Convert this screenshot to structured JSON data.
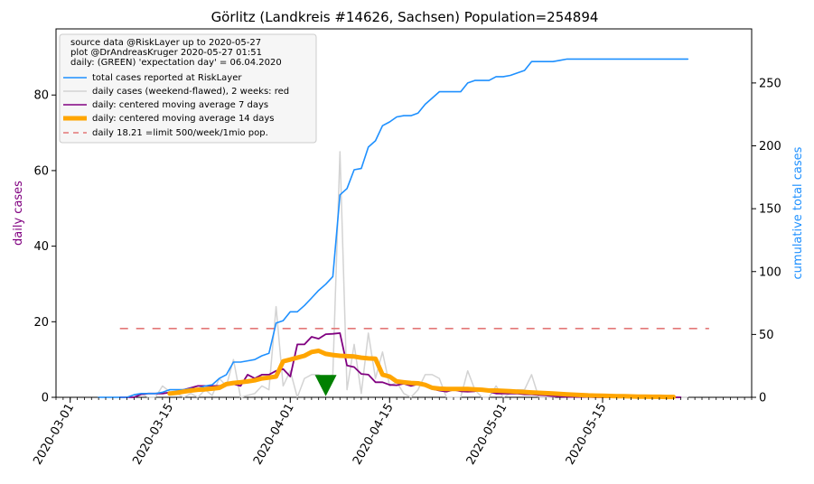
{
  "chart_data": {
    "type": "line",
    "title": "Görlitz (Landkreis #14626, Sachsen) Population=254894",
    "ylabel_left": "daily cases",
    "ylabel_right": "cumulative total cases",
    "ylim_left": [
      0,
      97.5
    ],
    "ylim_right": [
      0,
      293
    ],
    "yticks_left": [
      0,
      20,
      40,
      60,
      80
    ],
    "yticks_right": [
      0,
      50,
      100,
      150,
      200,
      250
    ],
    "xlim": [
      "2020-02-28",
      "2020-06-05"
    ],
    "xtick_labels": [
      "2020-03-01",
      "2020-03-15",
      "2020-04-01",
      "2020-04-15",
      "2020-05-01",
      "2020-05-15"
    ],
    "grid": false,
    "legend_position": "top-left",
    "legend_header": [
      "source data @RiskLayer up to 2020-05-27",
      "plot @DrAndreasKruger 2020-05-27 01:51",
      "daily: (GREEN) 'expectation day' = 06.04.2020"
    ],
    "expectation_day": "2020-04-06",
    "limit_value": 18.21,
    "colors": {
      "total": "#1e90ff",
      "daily": "#d3d3d3",
      "ma7": "#800080",
      "ma14": "#ffa500",
      "limit": "#e37777",
      "marker": "#008000",
      "left_axis_label": "#800080",
      "right_axis_label": "#1e90ff"
    },
    "series": [
      {
        "name": "total cases reported at RiskLayer",
        "axis": "right",
        "color": "#1e90ff",
        "start": "2020-03-05",
        "values": [
          0,
          0,
          0,
          0,
          0,
          2,
          3,
          3,
          3,
          4,
          6,
          6,
          6,
          7,
          7,
          9,
          10,
          15,
          18,
          28,
          28,
          29,
          30,
          33,
          35,
          59,
          61,
          68,
          68,
          73,
          79,
          85,
          90,
          96,
          161,
          166,
          181,
          182,
          199,
          204,
          216,
          219,
          223,
          224,
          224,
          226,
          233,
          238,
          243,
          243,
          243,
          243,
          250,
          252,
          252,
          252,
          255,
          255,
          256,
          258,
          260,
          267,
          267,
          267,
          267,
          268,
          269,
          269,
          269,
          269,
          269,
          269,
          269,
          269,
          269,
          269,
          269,
          269,
          269,
          269,
          269,
          269,
          269,
          269
        ]
      },
      {
        "name": "daily cases (weekend-flawed), 2 weeks: red",
        "axis": "left",
        "color": "#d3d3d3",
        "start": "2020-03-05",
        "values": [
          0,
          0,
          0,
          0,
          0,
          0.7,
          1,
          0,
          0,
          3,
          1.5,
          1,
          0,
          1,
          0,
          2,
          0.5,
          5,
          3,
          10,
          0,
          0.5,
          1,
          3,
          2,
          24,
          3,
          7,
          0,
          5,
          6,
          6,
          5,
          6,
          65,
          2,
          14,
          1,
          17,
          5,
          12,
          3,
          4,
          1,
          0,
          2,
          6,
          6,
          5,
          0,
          0,
          0,
          7,
          2,
          0,
          0,
          3,
          0,
          1,
          2,
          2,
          6,
          0,
          0,
          0,
          0.5,
          1,
          0,
          0,
          0,
          0,
          0,
          0,
          0,
          0,
          0,
          0,
          0,
          0,
          0,
          0,
          0,
          0,
          0
        ]
      },
      {
        "name": "daily: centered moving average 7 days",
        "axis": "left",
        "color": "#800080",
        "start": "2020-03-08",
        "values": [
          0,
          0,
          0,
          0.8,
          1,
          1,
          1,
          1.3,
          1.5,
          2,
          2.5,
          3,
          3,
          3,
          3,
          3.5,
          3.5,
          3,
          6,
          5,
          6,
          6,
          7,
          7.5,
          5.5,
          14,
          14,
          16,
          15.5,
          16.7,
          16.8,
          17,
          8.4,
          8,
          6.2,
          6,
          4,
          4,
          3.3,
          3.2,
          3.6,
          3,
          3.5,
          3,
          2.2,
          1.8,
          1.5,
          2,
          1.6,
          1.5,
          1.6,
          2,
          1.5,
          1,
          1,
          1,
          1,
          0.8,
          0.8,
          0.6,
          0.5,
          0.3,
          0.2,
          0.1,
          0.1,
          0.1,
          0.1,
          0,
          0,
          0,
          0,
          0,
          0,
          0,
          0,
          0,
          0,
          0,
          0,
          0
        ]
      },
      {
        "name": "daily: centered moving average 14 days",
        "axis": "left",
        "color": "#ffa500",
        "start": "2020-03-15",
        "values": [
          1,
          1.2,
          1.5,
          1.8,
          2,
          2.1,
          2.3,
          2.5,
          3.5,
          3.8,
          4,
          4.2,
          4.5,
          5,
          5.2,
          5.5,
          9.5,
          10,
          10.5,
          11,
          12,
          12.3,
          11.5,
          11.2,
          11,
          10.9,
          10.8,
          10.5,
          10.3,
          10.2,
          6,
          5.5,
          4.2,
          4,
          3.8,
          3.7,
          3.3,
          2.5,
          2.3,
          2.2,
          2.2,
          2.2,
          2.2,
          2.1,
          2,
          1.8,
          1.8,
          1.7,
          1.6,
          1.5,
          1.4,
          1.3,
          1.2,
          1.1,
          1,
          0.9,
          0.8,
          0.7,
          0.6,
          0.5,
          0.45,
          0.4,
          0.35,
          0.3,
          0.3,
          0.25,
          0.2,
          0.2,
          0.15,
          0.15,
          0.1,
          0.1
        ]
      },
      {
        "name": "daily 18.21 =limit 500/week/1mio pop.",
        "axis": "left",
        "color": "#e37777",
        "dashed": true,
        "x_range": [
          "2020-03-08",
          "2020-05-30"
        ],
        "value": 18.21
      }
    ]
  }
}
